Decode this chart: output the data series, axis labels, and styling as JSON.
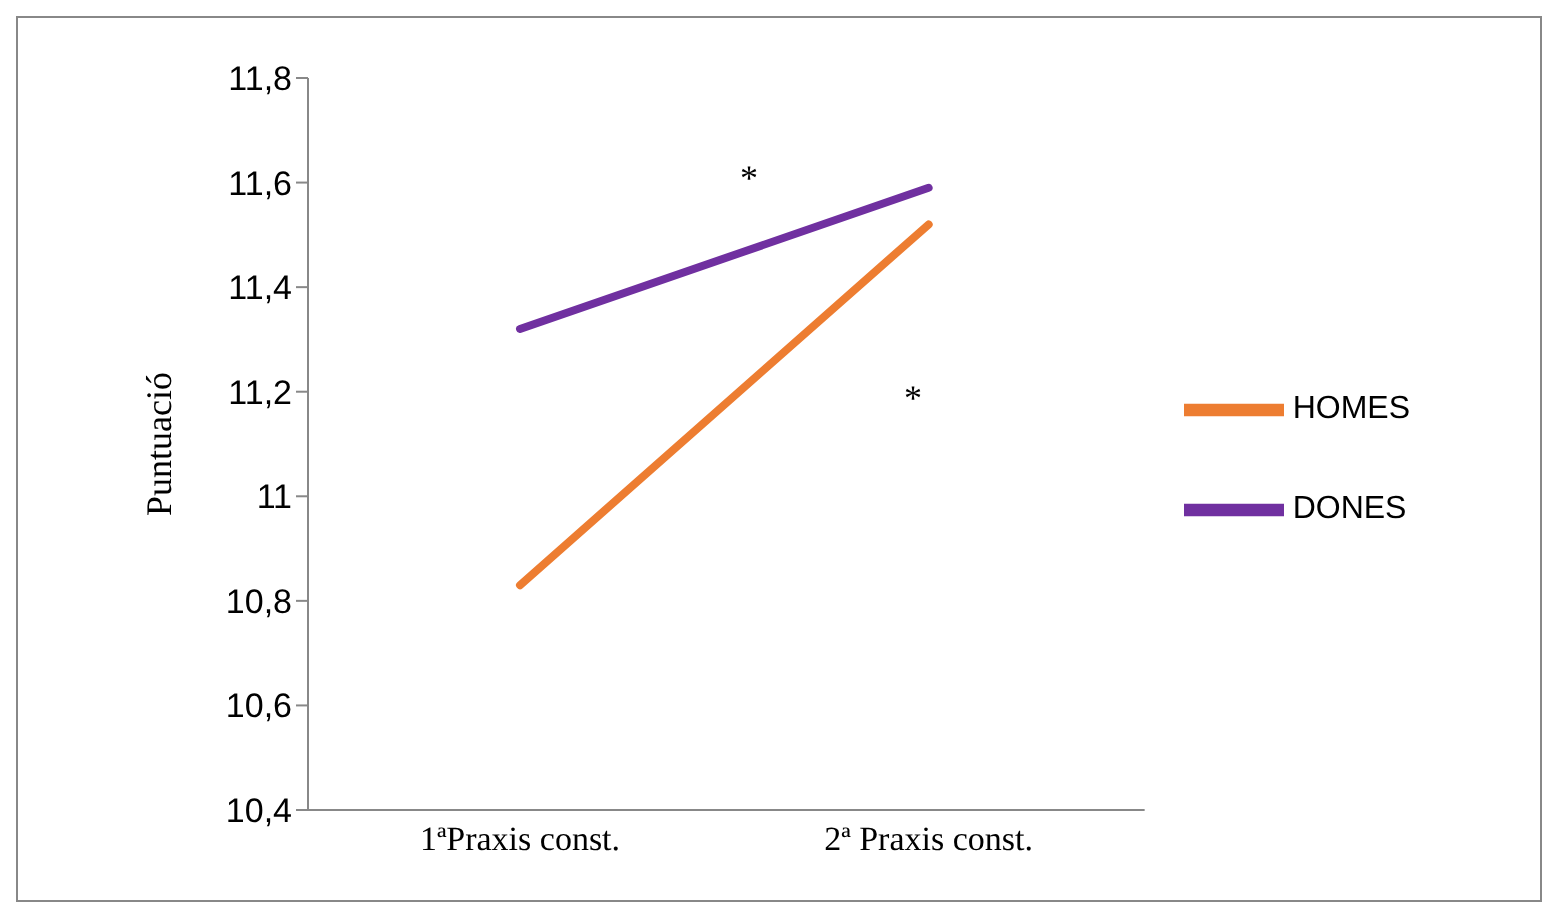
{
  "chart_data": {
    "type": "line",
    "ylabel": "Puntuació",
    "categories": [
      "1ªPraxis const.",
      "2ª Praxis const."
    ],
    "series": [
      {
        "name": "HOMES",
        "color": "#ed7d31",
        "values": [
          10.83,
          11.52
        ]
      },
      {
        "name": "DONES",
        "color": "#7030a0",
        "values": [
          11.32,
          11.59
        ]
      }
    ],
    "ylim": [
      10.4,
      11.8
    ],
    "yticks": [
      {
        "value": 10.4,
        "label": "10,4"
      },
      {
        "value": 10.6,
        "label": "10,6"
      },
      {
        "value": 10.8,
        "label": "10,8"
      },
      11,
      {
        "value": 11.2,
        "label": "11,2"
      },
      {
        "value": 11.4,
        "label": "11,4"
      },
      {
        "value": 11.6,
        "label": "11,6"
      },
      {
        "value": 11.8,
        "label": "11,8"
      }
    ],
    "annotations": [
      "*",
      "*"
    ],
    "marker": "none",
    "line_style": "solid",
    "grid": false,
    "legend": "right"
  }
}
